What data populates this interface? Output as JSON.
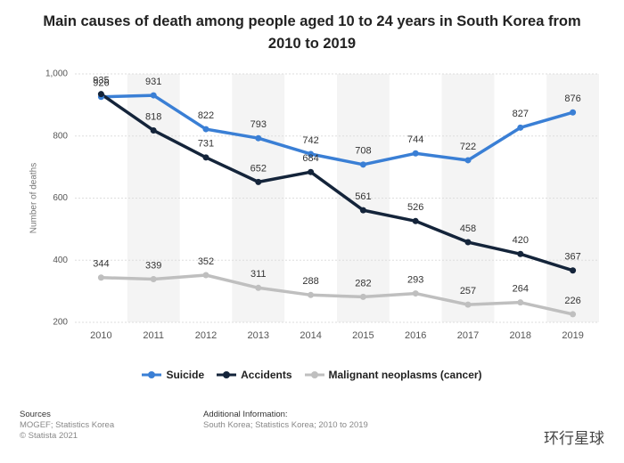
{
  "chart_data": {
    "type": "line",
    "title": "Main causes of death among people aged 10 to 24 years in South Korea from 2010 to 2019",
    "y_label": "Number of deaths",
    "categories": [
      "2010",
      "2011",
      "2012",
      "2013",
      "2014",
      "2015",
      "2016",
      "2017",
      "2018",
      "2019"
    ],
    "series": [
      {
        "name": "Suicide",
        "color": "#3a7fd5",
        "values": [
          926,
          931,
          822,
          793,
          742,
          708,
          744,
          722,
          827,
          876
        ]
      },
      {
        "name": "Accidents",
        "color": "#14243a",
        "values": [
          935,
          818,
          731,
          652,
          684,
          561,
          526,
          458,
          420,
          367
        ]
      },
      {
        "name": "Malignant neoplasms (cancer)",
        "color": "#bfbfbf",
        "values": [
          344,
          339,
          352,
          311,
          288,
          282,
          293,
          257,
          264,
          226
        ]
      }
    ],
    "ylim": [
      200,
      1000
    ],
    "yticks": [
      200,
      400,
      600,
      800,
      {
        "value": 1000,
        "label": "1,000"
      }
    ],
    "grid": true,
    "legend": "bottom",
    "sources_title": "Sources",
    "sources": [
      "MOGEF; Statistics Korea",
      "© Statista 2021"
    ],
    "additional_title": "Additional Information:",
    "additional": "South Korea; Statistics Korea; 2010 to 2019",
    "watermark": "环行星球"
  }
}
